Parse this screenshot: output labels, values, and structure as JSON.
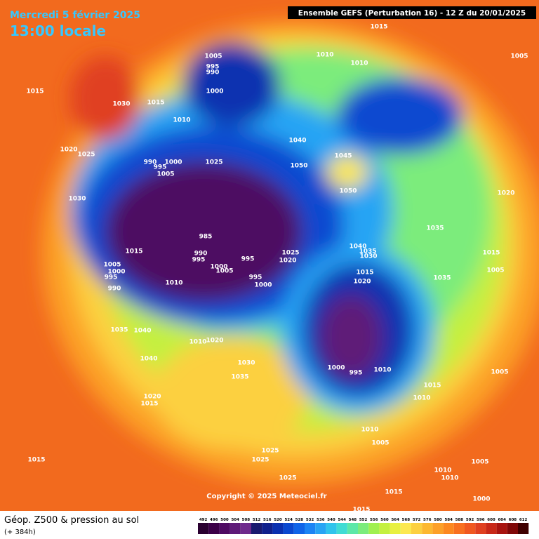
{
  "header": {
    "date": "Mercredi 5 février 2025",
    "time": "13:00 locale",
    "run": "Ensemble GEFS  (Perturbation 16)  -  12 Z du 20/01/2025"
  },
  "copyright": "Copyright © 2025 Meteociel.fr",
  "footer": {
    "title": "Géop. Z500 & pression au sol",
    "lead": "(+ 384h)"
  },
  "legend": {
    "values": [
      492,
      496,
      500,
      504,
      508,
      512,
      516,
      520,
      524,
      528,
      532,
      536,
      540,
      544,
      548,
      552,
      556,
      560,
      564,
      568,
      572,
      576,
      580,
      584,
      588,
      592,
      596,
      600,
      604,
      608,
      612
    ],
    "colors": [
      "#2a0030",
      "#3c0048",
      "#4e0a62",
      "#5e1a78",
      "#6e2a8c",
      "#1a1a70",
      "#10208c",
      "#0a30b0",
      "#0a48d0",
      "#1064e8",
      "#1c84f4",
      "#28a4f4",
      "#30c4ec",
      "#40dcd4",
      "#5ce8a8",
      "#7cec7c",
      "#a0f050",
      "#c4f040",
      "#e8f040",
      "#fce850",
      "#fcd040",
      "#fcb830",
      "#fca028",
      "#fc8820",
      "#f87020",
      "#f05820",
      "#e04020",
      "#c82818",
      "#a81410",
      "#800808",
      "#400000"
    ]
  },
  "isobars": [
    "1015",
    "1010",
    "1010",
    "1005",
    "1005",
    "995",
    "990",
    "1000",
    "1015",
    "1030",
    "1015",
    "1010",
    "1020",
    "1025",
    "990",
    "1000",
    "995",
    "1005",
    "1025",
    "1040",
    "1045",
    "1050",
    "1050",
    "1020",
    "1030",
    "1035",
    "985",
    "990",
    "995",
    "1015",
    "1040",
    "1035",
    "1030",
    "1025",
    "1020",
    "1015",
    "1005",
    "1000",
    "995",
    "990",
    "995",
    "1000",
    "1005",
    "1015",
    "995",
    "1000",
    "1010",
    "1020",
    "1035",
    "1005",
    "1035",
    "1040",
    "1010",
    "1020",
    "1030",
    "1040",
    "1000",
    "995",
    "1010",
    "1005",
    "1035",
    "1015",
    "1010",
    "1020",
    "1015",
    "1010",
    "1005",
    "1015",
    "1025",
    "1025",
    "1005",
    "1010",
    "1010",
    "1025",
    "1015",
    "1000",
    "1015"
  ]
}
